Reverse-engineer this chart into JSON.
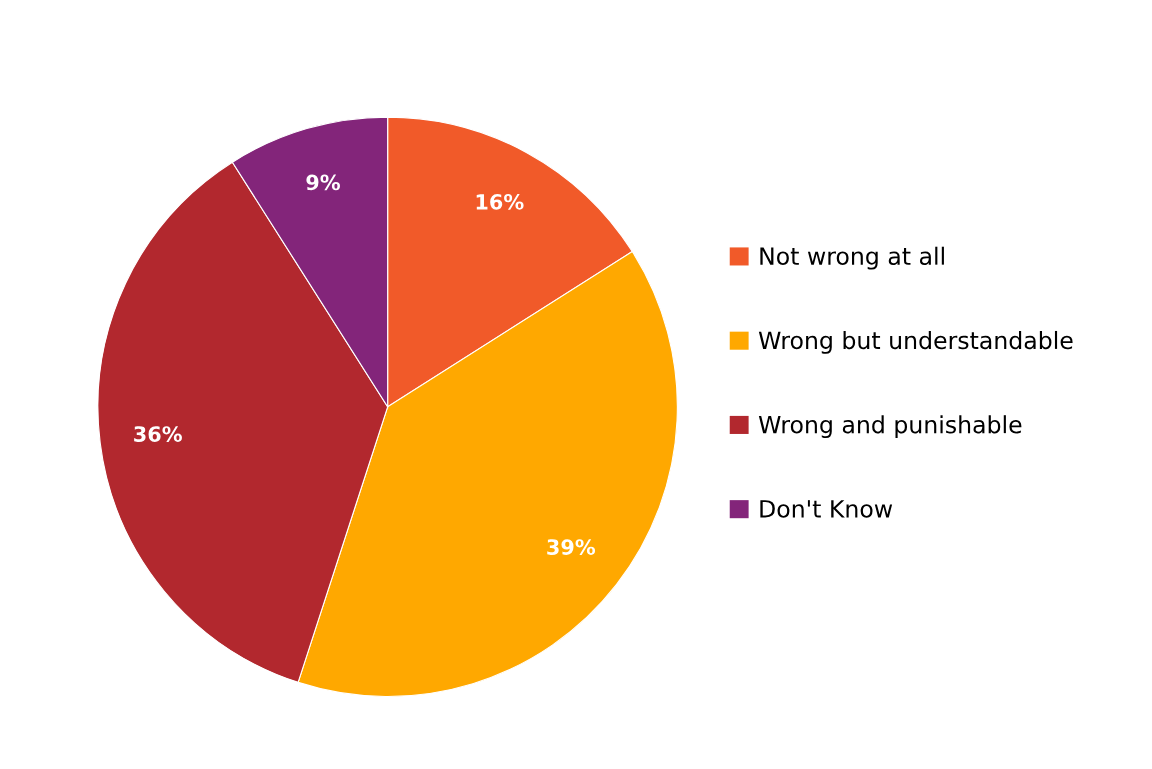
{
  "chart_data": {
    "type": "pie",
    "categories": [
      "Not wrong at all",
      "Wrong but understandable",
      "Wrong and punishable",
      "Don't Know"
    ],
    "values": [
      16,
      39,
      36,
      9
    ],
    "colors": [
      "#f15a29",
      "#ffa800",
      "#b2282e",
      "#83257a"
    ],
    "value_labels": [
      "16%",
      "39%",
      "36%",
      "9%"
    ],
    "legend": "right"
  }
}
